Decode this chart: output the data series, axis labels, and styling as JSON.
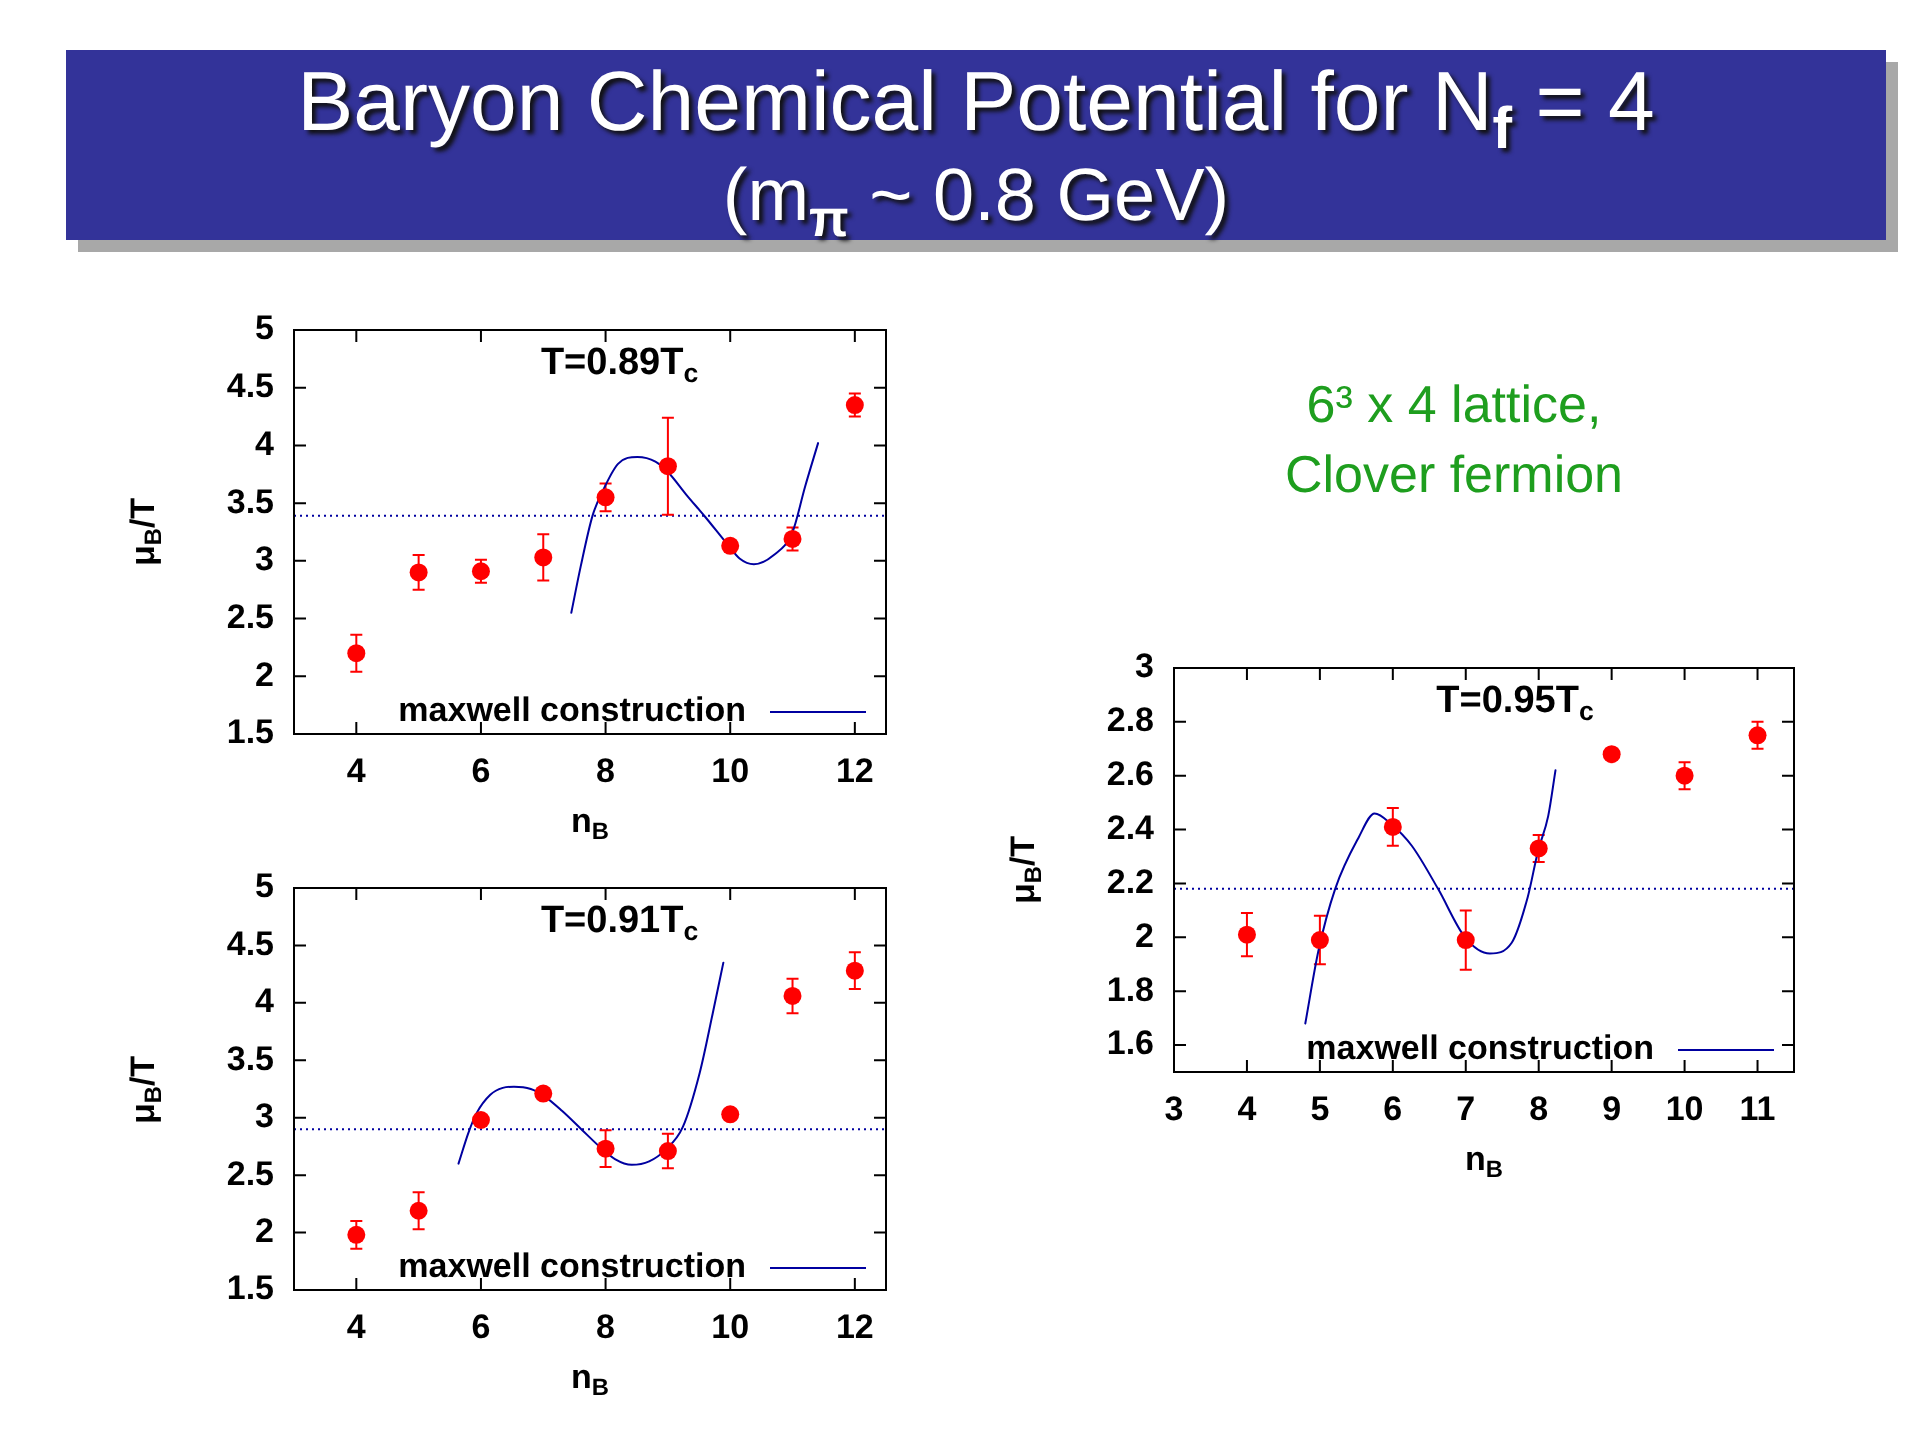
{
  "chart_data": [
    {
      "type": "scatter",
      "title": "Baryon Chemical Potential for N$_{f}$ = 4",
      "subtitle": "(m$_{π}$ ~ 0.8 GeV)",
      "xlabel": "n$_{B}$",
      "ylabel": "μ$_{B}$/T",
      "annotations": [
        "T=0.89T$_{c}$"
      ],
      "xlim": [
        3,
        12.5
      ],
      "xticks": [
        4,
        6,
        8,
        10,
        12
      ],
      "ylim": [
        1.5,
        5
      ],
      "yticks": [
        1.5,
        2,
        2.5,
        3,
        3.5,
        4,
        4.5,
        5
      ],
      "grid": false,
      "legend": "bottom right",
      "ref_lines": [
        {
          "axis": "y",
          "value": 3.39,
          "color": "#0000a0",
          "line_style": "dotted"
        }
      ],
      "series": [
        {
          "type": "scatter",
          "color": "#ff0000",
          "marker": "circle",
          "x": [
            4,
            5,
            6,
            7,
            8,
            9,
            10,
            11,
            12
          ],
          "values": [
            2.2,
            2.9,
            2.91,
            3.03,
            3.55,
            3.82,
            3.13,
            3.19,
            4.35
          ],
          "errors": [
            0.16,
            0.15,
            0.1,
            0.2,
            0.12,
            0.42,
            null,
            0.1,
            0.1
          ]
        },
        {
          "type": "line",
          "name": "maxwell construction",
          "color": "#0000a0",
          "marker": "none",
          "line_style": "solid",
          "x": [
            7.45,
            7.6,
            7.79,
            7.95,
            8.2,
            8.51,
            8.8,
            9.0,
            9.3,
            9.6,
            9.96,
            10.15,
            10.38,
            10.7,
            11.0,
            11.2,
            11.41
          ],
          "values": [
            2.55,
            2.95,
            3.39,
            3.6,
            3.84,
            3.9,
            3.86,
            3.77,
            3.57,
            3.38,
            3.14,
            3.02,
            2.97,
            3.05,
            3.25,
            3.64,
            4.02
          ]
        }
      ]
    },
    {
      "type": "scatter",
      "xlabel": "n$_{B}$",
      "ylabel": "μ$_{B}$/T",
      "annotations": [
        "T=0.91T$_{c}$"
      ],
      "xlim": [
        3,
        12.5
      ],
      "xticks": [
        4,
        6,
        8,
        10,
        12
      ],
      "ylim": [
        1.5,
        5
      ],
      "yticks": [
        1.5,
        2,
        2.5,
        3,
        3.5,
        4,
        4.5,
        5
      ],
      "grid": false,
      "legend": "bottom right",
      "ref_lines": [
        {
          "axis": "y",
          "value": 2.9,
          "color": "#0000a0",
          "line_style": "dotted"
        }
      ],
      "series": [
        {
          "type": "scatter",
          "color": "#ff0000",
          "marker": "circle",
          "x": [
            4,
            5,
            6,
            7,
            8,
            9,
            10,
            11,
            12
          ],
          "values": [
            1.98,
            2.19,
            2.98,
            3.21,
            2.73,
            2.71,
            3.03,
            4.06,
            4.28
          ],
          "errors": [
            0.12,
            0.16,
            null,
            null,
            0.16,
            0.15,
            null,
            0.15,
            0.16
          ]
        },
        {
          "type": "line",
          "name": "maxwell construction",
          "color": "#0000a0",
          "marker": "none",
          "line_style": "solid",
          "x": [
            5.64,
            5.8,
            5.93,
            6.15,
            6.35,
            6.53,
            6.8,
            7.01,
            7.3,
            7.61,
            7.9,
            8.15,
            8.42,
            8.7,
            8.96,
            9.24,
            9.51,
            9.72,
            9.89
          ],
          "values": [
            2.6,
            2.87,
            3.04,
            3.2,
            3.26,
            3.27,
            3.25,
            3.19,
            3.06,
            2.9,
            2.75,
            2.64,
            2.59,
            2.62,
            2.72,
            2.92,
            3.39,
            3.91,
            4.35
          ]
        }
      ]
    },
    {
      "type": "scatter",
      "xlabel": "n$_{B}$",
      "ylabel": "μ$_{B}$/T",
      "annotations": [
        "T=0.95T$_{c}$",
        "6³ x 4 lattice, Clover fermion"
      ],
      "xlim": [
        3,
        11.5
      ],
      "xticks": [
        3,
        4,
        5,
        6,
        7,
        8,
        9,
        10,
        11
      ],
      "ylim": [
        1.5,
        3
      ],
      "yticks": [
        1.6,
        1.8,
        2,
        2.2,
        2.4,
        2.6,
        2.8,
        3
      ],
      "grid": false,
      "legend": "bottom right",
      "ref_lines": [
        {
          "axis": "y",
          "value": 2.18,
          "color": "#0000a0",
          "line_style": "dotted"
        }
      ],
      "series": [
        {
          "type": "scatter",
          "color": "#ff0000",
          "marker": "circle",
          "x": [
            4,
            5,
            6,
            7,
            8,
            9,
            10,
            11
          ],
          "values": [
            2.01,
            1.99,
            2.41,
            1.99,
            2.33,
            2.68,
            2.6,
            2.75
          ],
          "errors": [
            0.08,
            0.09,
            0.07,
            0.11,
            0.05,
            null,
            0.05,
            0.05
          ]
        },
        {
          "type": "line",
          "name": "maxwell construction",
          "color": "#0000a0",
          "marker": "none",
          "line_style": "solid",
          "x": [
            4.8,
            4.98,
            5.21,
            5.53,
            5.75,
            5.98,
            6.26,
            6.62,
            6.99,
            7.33,
            7.63,
            7.85,
            7.99,
            8.13,
            8.23
          ],
          "values": [
            1.68,
            1.95,
            2.18,
            2.37,
            2.46,
            2.42,
            2.34,
            2.18,
            2.0,
            1.94,
            1.98,
            2.15,
            2.32,
            2.45,
            2.62
          ]
        }
      ]
    }
  ]
}
